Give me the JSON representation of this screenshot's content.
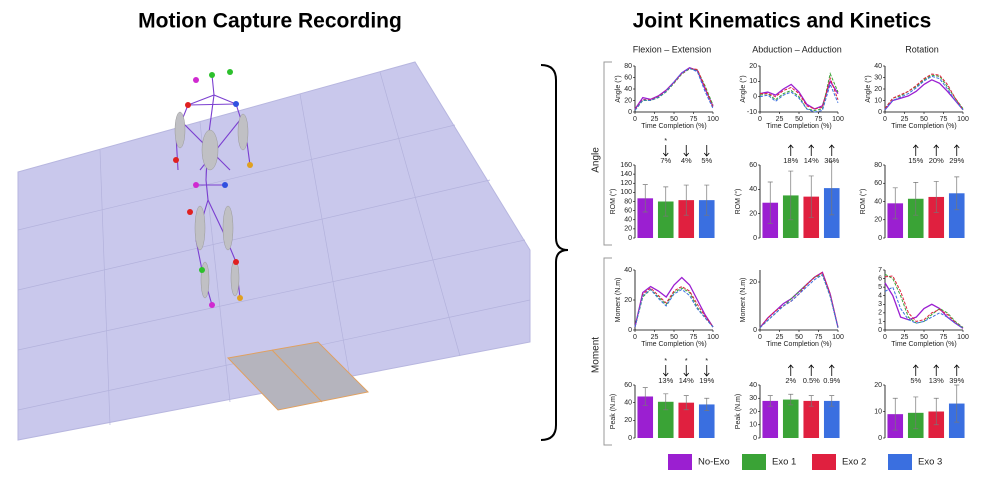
{
  "header": {
    "left_title": "Motion Capture Recording",
    "right_title": "Joint Kinematics and Kinetics",
    "columns": [
      "Flexion – Extension",
      "Abduction – Adduction",
      "Rotation"
    ],
    "rows": [
      "Angle",
      "Moment"
    ]
  },
  "chart_data": [
    {
      "type": "line",
      "x": [
        0,
        10,
        20,
        30,
        40,
        50,
        60,
        70,
        80,
        90,
        100
      ],
      "xlim": [
        0,
        100
      ],
      "xticks": [
        0,
        25,
        50,
        75,
        100
      ],
      "ylim": [
        0,
        80
      ],
      "yticks": [
        0,
        20,
        40,
        60,
        80
      ],
      "xlabel": "Time Completion (%)",
      "ylabel": "Angle (°)",
      "series": [
        {
          "name": "No-Exo",
          "color": "#9b1fd1",
          "values": [
            5,
            25,
            22,
            28,
            38,
            52,
            68,
            77,
            72,
            40,
            10
          ]
        },
        {
          "name": "Exo 1",
          "color": "#3aa336",
          "values": [
            3,
            20,
            20,
            25,
            35,
            50,
            66,
            75,
            73,
            45,
            12
          ]
        },
        {
          "name": "Exo 2",
          "color": "#e0203f",
          "values": [
            4,
            22,
            21,
            27,
            37,
            51,
            67,
            76,
            74,
            42,
            8
          ]
        },
        {
          "name": "Exo 3",
          "color": "#3a6fe0",
          "values": [
            3,
            21,
            20,
            26,
            36,
            52,
            68,
            76,
            70,
            35,
            6
          ]
        }
      ]
    },
    {
      "type": "line",
      "x": [
        0,
        10,
        20,
        30,
        40,
        50,
        60,
        70,
        80,
        90,
        100
      ],
      "xlim": [
        0,
        100
      ],
      "xticks": [
        0,
        25,
        50,
        75,
        100
      ],
      "ylim": [
        -10,
        20
      ],
      "yticks": [
        -10,
        0,
        10,
        20
      ],
      "xlabel": "Time Completion (%)",
      "ylabel": "Angle (°)",
      "series": [
        {
          "name": "No-Exo",
          "color": "#9b1fd1",
          "values": [
            2,
            3,
            1,
            5,
            8,
            3,
            -5,
            -8,
            -6,
            10,
            2
          ]
        },
        {
          "name": "Exo 1",
          "color": "#3aa336",
          "values": [
            1,
            2,
            -2,
            2,
            4,
            0,
            -8,
            -9,
            -8,
            15,
            3
          ]
        },
        {
          "name": "Exo 2",
          "color": "#e0203f",
          "values": [
            2,
            2,
            0,
            4,
            6,
            2,
            -6,
            -8,
            -7,
            12,
            -2
          ]
        },
        {
          "name": "Exo 3",
          "color": "#3a6fe0",
          "values": [
            0,
            1,
            -3,
            1,
            3,
            -1,
            -8,
            -10,
            -9,
            8,
            -4
          ]
        }
      ]
    },
    {
      "type": "line",
      "x": [
        0,
        10,
        20,
        30,
        40,
        50,
        60,
        70,
        80,
        90,
        100
      ],
      "xlim": [
        0,
        100
      ],
      "xticks": [
        0,
        25,
        50,
        75,
        100
      ],
      "ylim": [
        0,
        40
      ],
      "yticks": [
        0,
        10,
        20,
        30,
        40
      ],
      "xlabel": "Time Completion (%)",
      "ylabel": "Angle (°)",
      "series": [
        {
          "name": "No-Exo",
          "color": "#9b1fd1",
          "values": [
            2,
            10,
            12,
            14,
            18,
            24,
            28,
            25,
            18,
            10,
            2
          ]
        },
        {
          "name": "Exo 1",
          "color": "#3aa336",
          "values": [
            3,
            12,
            14,
            18,
            22,
            28,
            32,
            31,
            22,
            12,
            3
          ]
        },
        {
          "name": "Exo 2",
          "color": "#e0203f",
          "values": [
            3,
            12,
            15,
            18,
            23,
            29,
            33,
            32,
            24,
            12,
            2
          ]
        },
        {
          "name": "Exo 3",
          "color": "#3a6fe0",
          "values": [
            2,
            10,
            13,
            16,
            21,
            27,
            31,
            29,
            20,
            10,
            2
          ]
        }
      ]
    },
    {
      "type": "bar",
      "categories": [
        null,
        null,
        null,
        null
      ],
      "values": [
        87,
        80,
        83,
        83
      ],
      "errors": [
        30,
        32,
        33,
        33
      ],
      "colors": [
        "#9b1fd1",
        "#3aa336",
        "#e0203f",
        "#3a6fe0"
      ],
      "ylim": [
        0,
        160
      ],
      "yticks": [
        0,
        20,
        40,
        60,
        80,
        100,
        120,
        140,
        160
      ],
      "ylabel": "ROM (°)",
      "annotations": [
        null,
        {
          "text": "7%",
          "arrow": "down",
          "marker": "*"
        },
        {
          "text": "4%",
          "arrow": "down"
        },
        {
          "text": "5%",
          "arrow": "down"
        }
      ]
    },
    {
      "type": "bar",
      "categories": [
        null,
        null,
        null,
        null
      ],
      "values": [
        29,
        35,
        34,
        41
      ],
      "errors": [
        17,
        20,
        17,
        22
      ],
      "colors": [
        "#9b1fd1",
        "#3aa336",
        "#e0203f",
        "#3a6fe0"
      ],
      "ylim": [
        0,
        60
      ],
      "yticks": [
        0,
        20,
        40,
        60
      ],
      "ylabel": "ROM (°)",
      "annotations": [
        null,
        {
          "text": "18%",
          "arrow": "up"
        },
        {
          "text": "14%",
          "arrow": "up"
        },
        {
          "text": "36%",
          "arrow": "up"
        }
      ]
    },
    {
      "type": "bar",
      "categories": [
        null,
        null,
        null,
        null
      ],
      "values": [
        38,
        43,
        45,
        49
      ],
      "errors": [
        17,
        18,
        17,
        18
      ],
      "colors": [
        "#9b1fd1",
        "#3aa336",
        "#e0203f",
        "#3a6fe0"
      ],
      "ylim": [
        0,
        80
      ],
      "yticks": [
        0,
        20,
        40,
        60,
        80
      ],
      "ylabel": "ROM (°)",
      "annotations": [
        null,
        {
          "text": "15%",
          "arrow": "up"
        },
        {
          "text": "20%",
          "arrow": "up"
        },
        {
          "text": "29%",
          "arrow": "up"
        }
      ]
    },
    {
      "type": "line",
      "x": [
        0,
        10,
        20,
        30,
        40,
        50,
        60,
        70,
        80,
        90,
        100
      ],
      "xlim": [
        0,
        100
      ],
      "xticks": [
        0,
        25,
        50,
        75,
        100
      ],
      "ylim": [
        0,
        40
      ],
      "yticks": [
        0,
        20,
        40
      ],
      "xlabel": "Time Completion (%)",
      "ylabel": "Moment (N.m)",
      "series": [
        {
          "name": "No-Exo",
          "color": "#9b1fd1",
          "values": [
            2,
            25,
            29,
            26,
            22,
            30,
            35,
            30,
            20,
            10,
            2
          ]
        },
        {
          "name": "Exo 1",
          "color": "#3aa336",
          "values": [
            2,
            22,
            27,
            22,
            17,
            25,
            28,
            25,
            15,
            8,
            2
          ]
        },
        {
          "name": "Exo 2",
          "color": "#e0203f",
          "values": [
            2,
            24,
            28,
            23,
            18,
            26,
            29,
            26,
            17,
            9,
            2
          ]
        },
        {
          "name": "Exo 3",
          "color": "#3a6fe0",
          "values": [
            2,
            23,
            27,
            21,
            16,
            24,
            27,
            23,
            14,
            8,
            2
          ]
        }
      ]
    },
    {
      "type": "line",
      "x": [
        0,
        10,
        20,
        30,
        40,
        50,
        60,
        70,
        80,
        90,
        100
      ],
      "xlim": [
        0,
        100
      ],
      "xticks": [
        0,
        25,
        50,
        75,
        100
      ],
      "ylim": [
        0,
        25
      ],
      "yticks": [
        0,
        20
      ],
      "xlabel": "Time Completion (%)",
      "ylabel": "Moment (N.m)",
      "series": [
        {
          "name": "No-Exo",
          "color": "#9b1fd1",
          "values": [
            1,
            5,
            8,
            11,
            13,
            16,
            19,
            22,
            24,
            15,
            1
          ]
        },
        {
          "name": "Exo 1",
          "color": "#3aa336",
          "values": [
            1,
            4,
            7,
            10,
            13,
            16,
            19,
            22,
            23,
            14,
            1
          ]
        },
        {
          "name": "Exo 2",
          "color": "#e0203f",
          "values": [
            1,
            5,
            8,
            10,
            12,
            15,
            19,
            22,
            24,
            15,
            1
          ]
        },
        {
          "name": "Exo 3",
          "color": "#3a6fe0",
          "values": [
            1,
            4,
            7,
            10,
            12,
            15,
            18,
            21,
            23,
            14,
            1
          ]
        }
      ]
    },
    {
      "type": "line",
      "x": [
        0,
        10,
        20,
        30,
        40,
        50,
        60,
        70,
        80,
        90,
        100
      ],
      "xlim": [
        0,
        100
      ],
      "xticks": [
        0,
        25,
        50,
        75,
        100
      ],
      "ylim": [
        0,
        7
      ],
      "yticks": [
        0,
        1,
        2,
        3,
        4,
        5,
        6,
        7
      ],
      "xlabel": "Time Completion (%)",
      "ylabel": null,
      "series": [
        {
          "name": "No-Exo",
          "color": "#9b1fd1",
          "values": [
            5.5,
            4,
            1.5,
            1.2,
            1.5,
            2.5,
            3,
            2.5,
            1.5,
            0.8,
            0.2
          ]
        },
        {
          "name": "Exo 1",
          "color": "#3aa336",
          "values": [
            6.5,
            6,
            4,
            1.5,
            0.8,
            1,
            1.8,
            2.5,
            2,
            1,
            0.3
          ]
        },
        {
          "name": "Exo 2",
          "color": "#e0203f",
          "values": [
            6.2,
            6.3,
            4.5,
            2,
            1,
            1.2,
            2,
            2.4,
            1.8,
            0.9,
            0.2
          ]
        },
        {
          "name": "Exo 3",
          "color": "#3a6fe0",
          "values": [
            4.5,
            5,
            2.5,
            1.2,
            0.8,
            1,
            1.5,
            2,
            1.5,
            0.8,
            0.2
          ]
        }
      ]
    },
    {
      "type": "bar",
      "categories": [
        null,
        null,
        null,
        null
      ],
      "values": [
        47,
        41,
        40,
        38
      ],
      "errors": [
        10,
        9,
        8,
        7
      ],
      "colors": [
        "#9b1fd1",
        "#3aa336",
        "#e0203f",
        "#3a6fe0"
      ],
      "ylim": [
        0,
        60
      ],
      "yticks": [
        0,
        20,
        40,
        60
      ],
      "ylabel": "Peak (N.m)",
      "annotations": [
        null,
        {
          "text": "13%",
          "arrow": "down",
          "marker": "*"
        },
        {
          "text": "14%",
          "arrow": "down",
          "marker": "*"
        },
        {
          "text": "19%",
          "arrow": "down",
          "marker": "*"
        }
      ]
    },
    {
      "type": "bar",
      "categories": [
        null,
        null,
        null,
        null
      ],
      "values": [
        28,
        29,
        28,
        28
      ],
      "errors": [
        4,
        4,
        4,
        4
      ],
      "colors": [
        "#9b1fd1",
        "#3aa336",
        "#e0203f",
        "#3a6fe0"
      ],
      "ylim": [
        0,
        40
      ],
      "yticks": [
        0,
        10,
        20,
        30,
        40
      ],
      "ylabel": "Peak (N.m)",
      "annotations": [
        null,
        {
          "text": "2%",
          "arrow": "up"
        },
        {
          "text": "0.5%",
          "arrow": "up"
        },
        {
          "text": "0.9%",
          "arrow": "up"
        }
      ]
    },
    {
      "type": "bar",
      "categories": [
        null,
        null,
        null,
        null
      ],
      "values": [
        9,
        9.5,
        10,
        13
      ],
      "errors": [
        6,
        6,
        5,
        7
      ],
      "colors": [
        "#9b1fd1",
        "#3aa336",
        "#e0203f",
        "#3a6fe0"
      ],
      "ylim": [
        0,
        20
      ],
      "yticks": [
        0,
        10,
        20
      ],
      "ylabel": null,
      "annotations": [
        null,
        {
          "text": "5%",
          "arrow": "up"
        },
        {
          "text": "13%",
          "arrow": "up"
        },
        {
          "text": "39%",
          "arrow": "up"
        }
      ]
    }
  ]
}
